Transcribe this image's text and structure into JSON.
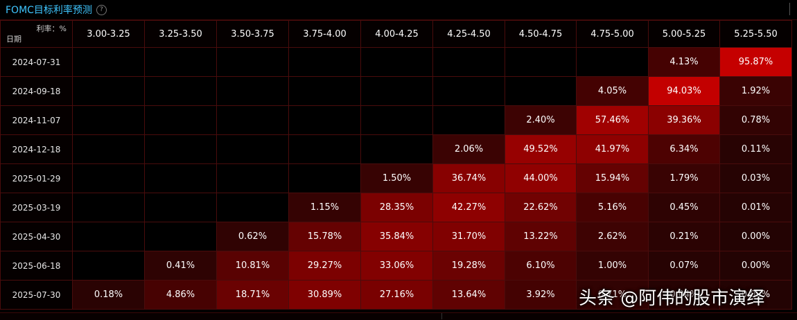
{
  "title": "FOMC目标利率预测",
  "help_symbol": "?",
  "corner": {
    "rate_label": "利率：%",
    "date_label": "日期"
  },
  "columns": [
    "3.00-3.25",
    "3.25-3.50",
    "3.50-3.75",
    "3.75-4.00",
    "4.00-4.25",
    "4.25-4.50",
    "4.50-4.75",
    "4.75-5.00",
    "5.00-5.25",
    "5.25-5.50"
  ],
  "rows": [
    {
      "date": "2024-07-31",
      "cells": [
        "",
        "",
        "",
        "",
        "",
        "",
        "",
        "",
        "4.13%",
        "95.87%"
      ]
    },
    {
      "date": "2024-09-18",
      "cells": [
        "",
        "",
        "",
        "",
        "",
        "",
        "",
        "4.05%",
        "94.03%",
        "1.92%"
      ]
    },
    {
      "date": "2024-11-07",
      "cells": [
        "",
        "",
        "",
        "",
        "",
        "",
        "2.40%",
        "57.46%",
        "39.36%",
        "0.78%"
      ]
    },
    {
      "date": "2024-12-18",
      "cells": [
        "",
        "",
        "",
        "",
        "",
        "2.06%",
        "49.52%",
        "41.97%",
        "6.34%",
        "0.11%"
      ]
    },
    {
      "date": "2025-01-29",
      "cells": [
        "",
        "",
        "",
        "",
        "1.50%",
        "36.74%",
        "44.00%",
        "15.94%",
        "1.79%",
        "0.03%"
      ]
    },
    {
      "date": "2025-03-19",
      "cells": [
        "",
        "",
        "",
        "1.15%",
        "28.35%",
        "42.27%",
        "22.62%",
        "5.16%",
        "0.45%",
        "0.01%"
      ]
    },
    {
      "date": "2025-04-30",
      "cells": [
        "",
        "",
        "0.62%",
        "15.78%",
        "35.84%",
        "31.70%",
        "13.22%",
        "2.62%",
        "0.21%",
        "0.00%"
      ]
    },
    {
      "date": "2025-06-18",
      "cells": [
        "",
        "0.41%",
        "10.81%",
        "29.27%",
        "33.06%",
        "19.28%",
        "6.10%",
        "1.00%",
        "0.07%",
        "0.00%"
      ]
    },
    {
      "date": "2025-07-30",
      "cells": [
        "0.18%",
        "4.86%",
        "18.71%",
        "30.89%",
        "27.16%",
        "13.64%",
        "3.92%",
        "0.71%",
        "0.04%",
        "0.00%"
      ]
    }
  ],
  "colors": {
    "title": "#3fc6ff",
    "cell_max": "#c00000",
    "cell_min": "#2a0303",
    "empty": "#000000"
  },
  "watermark": "头条 @阿伟的股市演绎"
}
